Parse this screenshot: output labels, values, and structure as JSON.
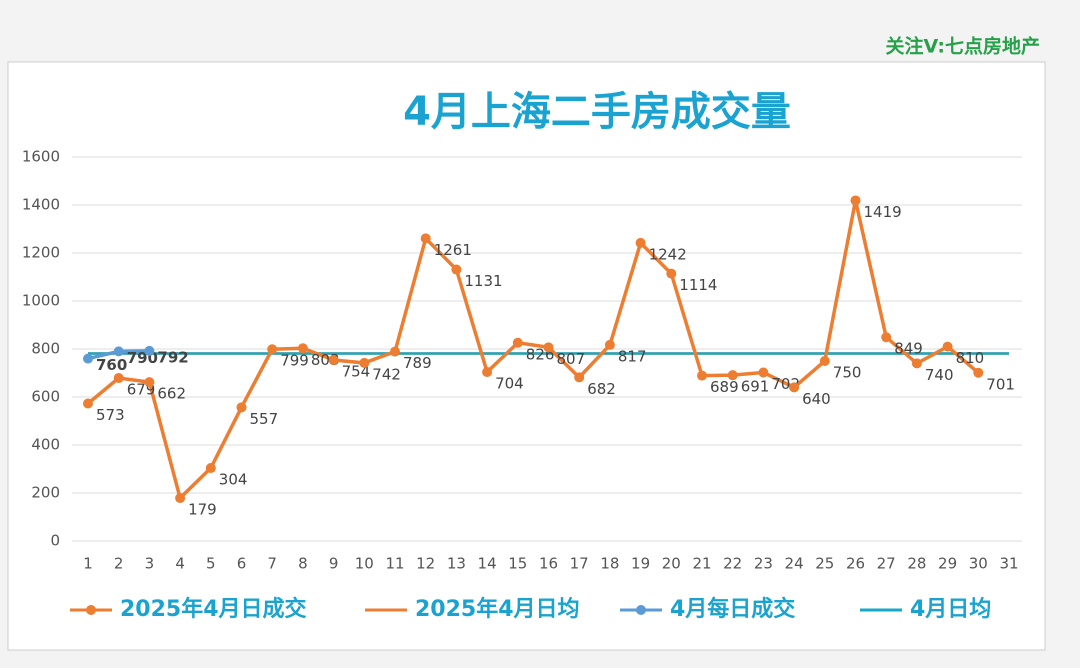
{
  "watermark": "关注V:七点房地产",
  "chart_data": {
    "type": "line",
    "title": "4月上海二手房成交量",
    "categories": [
      "1",
      "2",
      "3",
      "4",
      "5",
      "6",
      "7",
      "8",
      "9",
      "10",
      "11",
      "12",
      "13",
      "14",
      "15",
      "16",
      "17",
      "18",
      "19",
      "20",
      "21",
      "22",
      "23",
      "24",
      "25",
      "26",
      "27",
      "28",
      "29",
      "30",
      "31"
    ],
    "ylim": [
      0,
      1600
    ],
    "yticks": [
      0,
      200,
      400,
      600,
      800,
      1000,
      1200,
      1400,
      1600
    ],
    "grid": true,
    "legend": "bottom",
    "series": [
      {
        "name": "2025年4月日均",
        "color": "#ed7d31",
        "marker": false,
        "values": [
          781,
          781,
          781,
          781,
          781,
          781,
          781,
          781,
          781,
          781,
          781,
          781,
          781,
          781,
          781,
          781,
          781,
          781,
          781,
          781,
          781,
          781,
          781,
          781,
          781,
          781,
          781,
          781,
          781,
          781,
          781
        ]
      },
      {
        "name": "4月日均",
        "color": "#17a9c9",
        "marker": false,
        "values": [
          781,
          781,
          781,
          781,
          781,
          781,
          781,
          781,
          781,
          781,
          781,
          781,
          781,
          781,
          781,
          781,
          781,
          781,
          781,
          781,
          781,
          781,
          781,
          781,
          781,
          781,
          781,
          781,
          781,
          781,
          781
        ]
      },
      {
        "name": "2025年4月日成交",
        "color": "#ed7d31",
        "marker": true,
        "labels": true,
        "label_color": "#444",
        "values": [
          573,
          679,
          662,
          179,
          304,
          557,
          799,
          803,
          754,
          742,
          789,
          1261,
          1131,
          704,
          826,
          807,
          682,
          817,
          1242,
          1114,
          689,
          691,
          702,
          640,
          750,
          1419,
          849,
          740,
          810,
          701,
          null
        ]
      },
      {
        "name": "4月每日成交",
        "color": "#5b9bd5",
        "marker": true,
        "labels": true,
        "label_color": "#27a04a",
        "values": [
          760,
          790,
          792,
          null,
          null,
          null,
          null,
          null,
          null,
          null,
          null,
          null,
          null,
          null,
          null,
          null,
          null,
          null,
          null,
          null,
          null,
          null,
          null,
          null,
          null,
          null,
          null,
          null,
          null,
          null,
          null
        ]
      }
    ],
    "legend_order": [
      2,
      0,
      3,
      1
    ]
  }
}
